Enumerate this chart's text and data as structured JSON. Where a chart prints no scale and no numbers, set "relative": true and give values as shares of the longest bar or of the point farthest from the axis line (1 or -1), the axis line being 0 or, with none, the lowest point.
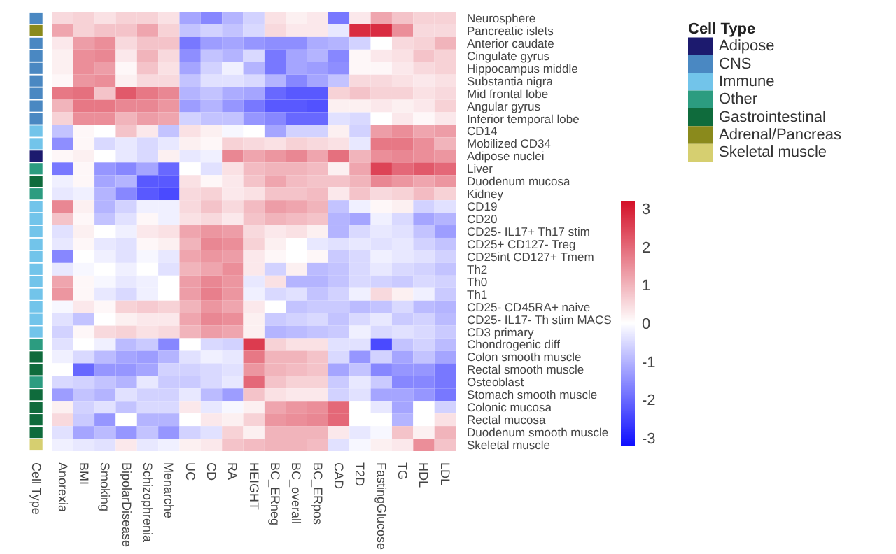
{
  "chart_data": [
    {
      "type": "heatmap",
      "categories": [
        "Anorexia",
        "BMI",
        "Smoking",
        "BipolarDisease",
        "Schizophrenia",
        "Menarche",
        "UC",
        "CD",
        "RA",
        "HEIGHT",
        "BC_ERneg",
        "BC_overall",
        "BC_ERpos",
        "CAD",
        "T2D",
        "FastingGlucose",
        "TG",
        "HDL",
        "LDL"
      ],
      "y_categories": [
        "Neurosphere",
        "Pancreatic islets",
        "Anterior caudate",
        "Cingulate gyrus",
        "Hippocampus middle",
        "Substantia nigra",
        "Mid frontal lobe",
        "Angular gyrus",
        "Inferior temporal lobe",
        "CD14",
        "Mobilized CD34",
        "Adipose nuclei",
        "Liver",
        "Duodenum mucosa",
        "Kidney",
        "CD19",
        "CD20",
        "CD25- IL17+ Th17 stim",
        "CD25+ CD127- Treg",
        "CD25int CD127+ Tmem",
        "Th2",
        "Th0",
        "Th1",
        "CD25- CD45RA+ naive",
        "CD25- IL17- Th stim MACS",
        "CD3 primary",
        "Chondrogenic diff",
        "Colon smooth muscle",
        "Rectal smooth muscle",
        "Osteoblast",
        "Stomach smooth muscle",
        "Colonic mucosa",
        "Rectal mucosa",
        "Duodenum smooth muscle",
        "Skeletal muscle"
      ],
      "cells": [
        [
          0.5,
          0.6,
          0.4,
          0.6,
          0.6,
          0.4,
          -1.2,
          -1.6,
          -1.0,
          -0.6,
          0.4,
          0.2,
          0.3,
          -1.8,
          0.3,
          1.2,
          0.8,
          0.6,
          0.6
        ],
        [
          1.2,
          0.6,
          0.8,
          0.8,
          1.2,
          0.6,
          -0.8,
          -0.6,
          -0.8,
          -0.5,
          0.5,
          0.3,
          0.3,
          -0.3,
          2.8,
          2.8,
          1.5,
          0.5,
          0.5
        ],
        [
          0.3,
          1.3,
          1.5,
          0.5,
          0.8,
          0.8,
          -1.8,
          -1.3,
          -1.2,
          -1.4,
          -1.5,
          -1.5,
          -1.1,
          -1.0,
          -0.6,
          0.0,
          0.5,
          0.6,
          1.0
        ],
        [
          0.2,
          1.5,
          1.6,
          0.3,
          1.0,
          0.5,
          -1.5,
          -0.8,
          -1.0,
          -0.5,
          -1.8,
          -1.2,
          -1.0,
          -1.6,
          0.1,
          0.3,
          0.4,
          0.8,
          0.6
        ],
        [
          0.2,
          1.5,
          1.3,
          0.1,
          0.8,
          0.4,
          -1.2,
          -0.6,
          -0.2,
          -1.0,
          -1.8,
          -1.2,
          -1.3,
          -1.5,
          0.1,
          0.1,
          0.3,
          0.5,
          0.6
        ],
        [
          0.1,
          1.4,
          1.5,
          0.2,
          0.5,
          0.5,
          -0.8,
          -0.4,
          -0.4,
          -0.5,
          -1.0,
          -1.6,
          -1.2,
          -0.8,
          0.5,
          0.5,
          0.4,
          0.3,
          0.4
        ],
        [
          1.8,
          1.9,
          0.8,
          2.2,
          1.8,
          1.6,
          -1.0,
          -0.8,
          -1.1,
          -1.2,
          -2.0,
          -2.2,
          -2.2,
          0.6,
          0.8,
          0.6,
          0.6,
          0.4,
          0.5
        ],
        [
          1.0,
          1.8,
          1.8,
          1.6,
          1.6,
          1.4,
          -1.3,
          -1.0,
          -1.4,
          -1.8,
          -2.2,
          -2.2,
          -2.3,
          0.2,
          0.2,
          0.3,
          0.2,
          0.3,
          0.6
        ],
        [
          0.6,
          1.5,
          1.5,
          1.0,
          1.3,
          1.2,
          -0.6,
          -0.8,
          -0.8,
          -1.4,
          -1.6,
          -2.0,
          -2.0,
          -0.4,
          -0.5,
          0.0,
          0.3,
          0.1,
          0.3
        ],
        [
          -0.8,
          0.1,
          0.0,
          0.8,
          0.3,
          -0.8,
          0.4,
          0.2,
          -0.1,
          0.0,
          -1.2,
          -0.6,
          -0.6,
          0.2,
          -0.6,
          1.3,
          1.5,
          1.2,
          1.3
        ],
        [
          -1.5,
          0.1,
          -0.5,
          -0.3,
          -0.5,
          -0.3,
          0.2,
          0.1,
          0.6,
          0.5,
          0.4,
          0.6,
          0.5,
          0.4,
          -0.3,
          1.8,
          1.8,
          1.5,
          1.0
        ],
        [
          0.1,
          0.2,
          0.0,
          -0.3,
          -0.5,
          0.2,
          -0.3,
          -0.2,
          1.6,
          1.2,
          1.4,
          1.6,
          1.2,
          1.9,
          1.0,
          1.5,
          1.6,
          1.5,
          1.4
        ],
        [
          -1.8,
          0.1,
          -1.4,
          -1.6,
          -1.2,
          -2.0,
          0.0,
          -0.4,
          0.4,
          0.9,
          1.0,
          1.0,
          0.9,
          0.2,
          1.2,
          2.5,
          2.0,
          2.2,
          2.0
        ],
        [
          -0.2,
          0.1,
          -1.2,
          -1.0,
          -2.2,
          -2.2,
          0.4,
          0.1,
          0.3,
          0.8,
          1.2,
          0.9,
          0.8,
          0.8,
          1.0,
          1.6,
          1.4,
          1.2,
          1.4
        ],
        [
          -0.3,
          -0.2,
          -1.0,
          -1.6,
          -2.2,
          -2.4,
          0.5,
          0.6,
          0.3,
          0.4,
          0.8,
          0.8,
          0.9,
          0.3,
          0.8,
          0.5,
          0.6,
          0.9,
          0.6
        ],
        [
          1.6,
          0.2,
          -1.0,
          -0.6,
          -0.2,
          -0.2,
          0.5,
          0.8,
          0.5,
          0.9,
          1.3,
          1.2,
          1.0,
          -0.8,
          -0.2,
          0.1,
          0.2,
          -0.6,
          -0.4
        ],
        [
          0.8,
          0.1,
          -0.8,
          -0.4,
          0.1,
          -0.2,
          0.4,
          0.5,
          0.3,
          0.8,
          1.0,
          0.9,
          0.8,
          -1.0,
          -1.2,
          -0.2,
          -0.5,
          -1.2,
          -1.0
        ],
        [
          -0.4,
          0.2,
          0.0,
          -0.2,
          0.3,
          0.4,
          1.2,
          1.4,
          1.3,
          0.5,
          0.3,
          0.4,
          0.2,
          -1.0,
          -0.5,
          -0.3,
          -0.4,
          -0.8,
          -1.3
        ],
        [
          -0.3,
          0.1,
          -0.3,
          -0.4,
          0.1,
          0.2,
          1.0,
          1.6,
          1.5,
          0.6,
          0.2,
          0.0,
          -0.3,
          -0.4,
          -0.3,
          -0.4,
          -0.3,
          -0.6,
          -0.8
        ],
        [
          -1.6,
          0.0,
          -0.2,
          -0.4,
          -0.1,
          -0.3,
          1.2,
          1.4,
          1.3,
          0.3,
          0.1,
          0.0,
          0.1,
          -0.7,
          -0.5,
          -0.2,
          -0.3,
          -0.4,
          -0.6
        ],
        [
          -0.3,
          -0.1,
          0.0,
          -0.2,
          0.0,
          -0.4,
          1.0,
          1.2,
          1.5,
          0.3,
          -0.6,
          0.2,
          -0.9,
          -0.8,
          -0.5,
          -0.3,
          -0.5,
          -0.6,
          -0.8
        ],
        [
          1.2,
          0.1,
          -0.1,
          -0.3,
          -0.2,
          0.0,
          1.3,
          1.6,
          1.4,
          -0.3,
          0.4,
          -1.0,
          -1.0,
          -0.8,
          -0.5,
          -0.6,
          -0.7,
          -0.5,
          -0.6
        ],
        [
          1.4,
          0.1,
          -0.3,
          -0.5,
          -0.2,
          0.0,
          1.3,
          1.7,
          1.4,
          -0.2,
          -0.5,
          -0.4,
          -0.8,
          -0.6,
          -0.2,
          0.5,
          0.2,
          -0.2,
          -0.7
        ],
        [
          -0.1,
          0.3,
          0.1,
          0.6,
          0.7,
          0.6,
          1.0,
          1.4,
          1.2,
          0.3,
          0.0,
          -0.8,
          -0.7,
          -0.7,
          -0.9,
          -0.8,
          -0.5,
          -0.9,
          -1.0
        ],
        [
          -0.4,
          -0.8,
          0.0,
          0.2,
          0.3,
          0.3,
          1.2,
          1.6,
          1.5,
          0.2,
          -0.7,
          -0.6,
          -0.5,
          -0.8,
          -0.5,
          -0.3,
          -0.7,
          -0.6,
          -0.9
        ],
        [
          -0.6,
          0.1,
          0.5,
          0.6,
          0.4,
          0.5,
          1.0,
          1.3,
          1.2,
          0.2,
          -1.0,
          -0.9,
          -0.8,
          -0.7,
          -0.2,
          -0.5,
          -0.4,
          -0.5,
          -0.7
        ],
        [
          -0.4,
          0.0,
          -0.2,
          -0.9,
          -0.7,
          -1.6,
          0.0,
          -0.5,
          -0.6,
          2.6,
          0.6,
          0.4,
          0.4,
          -0.4,
          -0.4,
          -2.4,
          -0.8,
          -0.6,
          -0.9
        ],
        [
          -0.2,
          -0.5,
          -0.9,
          -1.2,
          -1.3,
          -1.0,
          -0.4,
          -0.2,
          -0.3,
          1.8,
          1.0,
          1.0,
          0.8,
          -0.5,
          -1.4,
          -0.6,
          -1.2,
          -0.8,
          -1.2
        ],
        [
          0.0,
          -2.0,
          -1.4,
          -1.4,
          -1.2,
          -0.6,
          -0.6,
          -0.5,
          -0.4,
          1.4,
          1.0,
          0.9,
          0.8,
          -1.2,
          -0.8,
          -1.6,
          -1.4,
          -1.4,
          -1.8
        ],
        [
          -0.5,
          -0.6,
          -0.8,
          -1.0,
          -0.3,
          -0.7,
          -0.7,
          -0.5,
          -0.3,
          2.0,
          0.8,
          0.6,
          0.6,
          -0.7,
          -0.3,
          -0.7,
          -1.6,
          -1.6,
          -1.8
        ],
        [
          -1.3,
          -0.8,
          -1.0,
          -0.4,
          -0.6,
          -0.6,
          -0.3,
          -0.9,
          -1.3,
          0.8,
          0.4,
          0.3,
          0.3,
          -0.6,
          -0.4,
          -1.2,
          -1.2,
          -1.4,
          -1.8
        ],
        [
          0.2,
          -0.6,
          -0.4,
          -0.8,
          -0.5,
          -0.5,
          0.3,
          -0.3,
          -0.1,
          0.2,
          1.2,
          1.4,
          1.5,
          2.0,
          0.0,
          -0.3,
          -1.2,
          0.0,
          -0.6
        ],
        [
          0.5,
          -0.7,
          -1.4,
          0.0,
          -1.0,
          -1.0,
          0.0,
          0.3,
          0.2,
          0.6,
          1.4,
          1.5,
          1.6,
          2.0,
          0.0,
          0.0,
          -1.0,
          0.0,
          0.4
        ],
        [
          -0.4,
          -1.2,
          -0.9,
          -1.4,
          -0.8,
          -1.4,
          -0.6,
          -0.4,
          0.6,
          0.2,
          1.0,
          1.0,
          1.0,
          0.3,
          -0.3,
          -0.1,
          0.8,
          0.2,
          1.0
        ],
        [
          -0.2,
          -0.3,
          -0.4,
          0.3,
          -0.3,
          -0.2,
          0.2,
          0.3,
          0.8,
          0.9,
          1.0,
          1.0,
          0.9,
          -0.4,
          -0.1,
          0.2,
          0.3,
          1.5,
          0.8
        ]
      ],
      "clim": [
        -3.2,
        3.2
      ],
      "cticks": [
        -3,
        -2,
        -1,
        0,
        1,
        2,
        3
      ]
    },
    {
      "type": "bar",
      "orientation": "horizontal",
      "relative": true,
      "annotations": [
        "Cell Type"
      ],
      "legend_title": "Cell Type",
      "legend": "right",
      "categories": [
        null,
        null,
        null,
        null,
        null,
        null,
        null,
        null,
        null,
        null,
        null,
        null,
        null,
        null,
        null,
        null,
        null,
        null,
        null,
        null,
        null,
        null,
        null,
        null,
        null,
        null,
        null,
        null,
        null,
        null,
        null,
        null,
        null,
        null,
        null
      ],
      "series": [
        {
          "name": "Adipose",
          "color": "#1c1a6e",
          "values": [
            null,
            null,
            null,
            null,
            null,
            null,
            null,
            null,
            null,
            null,
            null,
            1,
            null,
            null,
            null,
            null,
            null,
            null,
            null,
            null,
            null,
            null,
            null,
            null,
            null,
            null,
            null,
            null,
            null,
            null,
            null,
            null,
            null,
            null,
            null
          ]
        },
        {
          "name": "CNS",
          "color": "#4a88c2",
          "values": [
            1,
            null,
            1,
            1,
            1,
            1,
            1,
            1,
            1,
            null,
            null,
            null,
            null,
            null,
            null,
            null,
            null,
            null,
            null,
            null,
            null,
            null,
            null,
            null,
            null,
            null,
            null,
            null,
            null,
            null,
            null,
            null,
            null,
            null,
            null
          ]
        },
        {
          "name": "Immune",
          "color": "#72c4ea",
          "values": [
            null,
            null,
            null,
            null,
            null,
            null,
            null,
            null,
            null,
            1,
            1,
            null,
            null,
            null,
            null,
            1,
            1,
            1,
            1,
            1,
            1,
            1,
            1,
            1,
            1,
            1,
            null,
            null,
            null,
            null,
            null,
            null,
            null,
            null,
            null
          ]
        },
        {
          "name": "Other",
          "color": "#2c9c80",
          "values": [
            null,
            null,
            null,
            null,
            null,
            null,
            null,
            null,
            null,
            null,
            null,
            null,
            1,
            null,
            1,
            null,
            null,
            null,
            null,
            null,
            null,
            null,
            null,
            null,
            null,
            null,
            1,
            null,
            null,
            1,
            null,
            null,
            null,
            null,
            null
          ]
        },
        {
          "name": "Gastrointestinal",
          "color": "#0f6b3c",
          "values": [
            null,
            null,
            null,
            null,
            null,
            null,
            null,
            null,
            null,
            null,
            null,
            null,
            null,
            1,
            null,
            null,
            null,
            null,
            null,
            null,
            null,
            null,
            null,
            null,
            null,
            null,
            null,
            1,
            1,
            null,
            1,
            1,
            1,
            1,
            null
          ]
        },
        {
          "name": "Adrenal/Pancreas",
          "color": "#8a8a1c",
          "values": [
            null,
            1,
            null,
            null,
            null,
            null,
            null,
            null,
            null,
            null,
            null,
            null,
            null,
            null,
            null,
            null,
            null,
            null,
            null,
            null,
            null,
            null,
            null,
            null,
            null,
            null,
            null,
            null,
            null,
            null,
            null,
            null,
            null,
            null,
            null
          ]
        },
        {
          "name": "Skeletal muscle",
          "color": "#d6cf70",
          "values": [
            null,
            null,
            null,
            null,
            null,
            null,
            null,
            null,
            null,
            null,
            null,
            null,
            null,
            null,
            null,
            null,
            null,
            null,
            null,
            null,
            null,
            null,
            null,
            null,
            null,
            null,
            null,
            null,
            null,
            null,
            null,
            null,
            null,
            null,
            1
          ]
        }
      ]
    }
  ]
}
